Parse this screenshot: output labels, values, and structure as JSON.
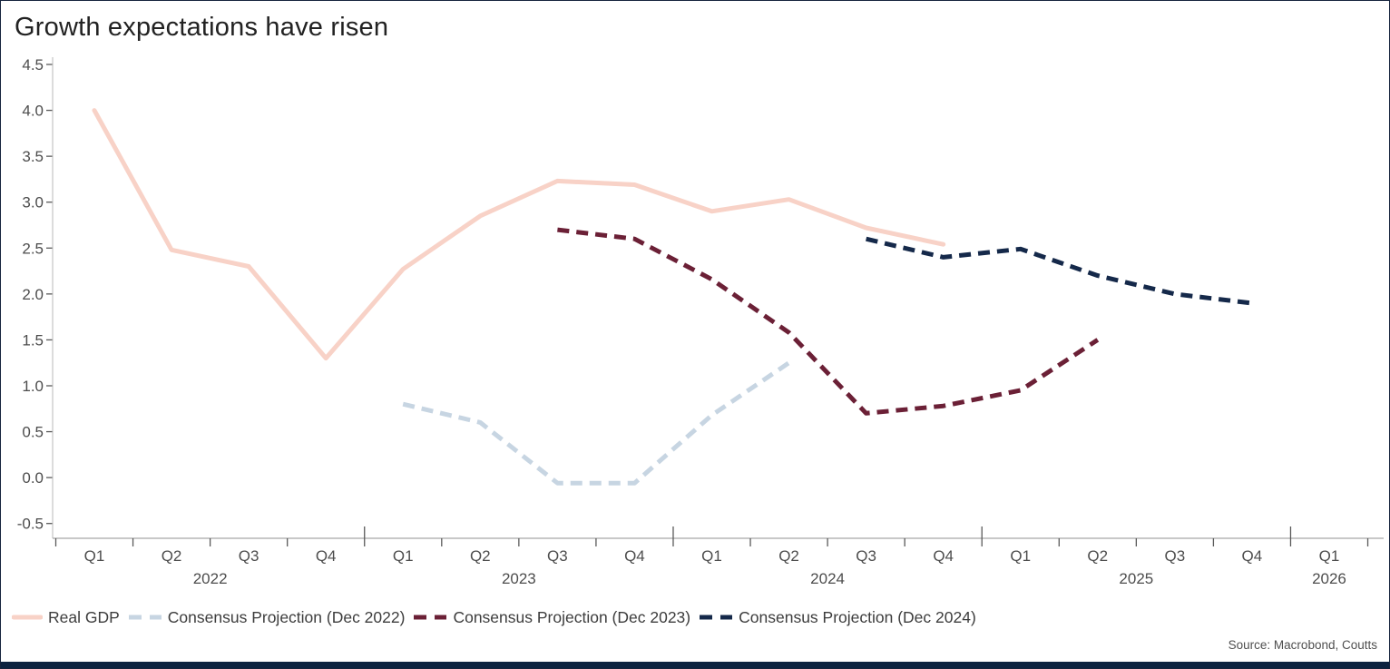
{
  "title": "Growth expectations have risen",
  "source": "Source: Macrobond, Coutts",
  "colors": {
    "real_gdp": "#f8d2c7",
    "proj_dec_2022": "#c7d5e2",
    "proj_dec_2023": "#6b2036",
    "proj_dec_2024": "#15294a",
    "axis_line": "#c4c4c4",
    "x_axis_line": "#a8a8a8",
    "tick": "#5a5a5a",
    "axis_label": "#4d4d4d",
    "bottom_bar": "#0c2340",
    "title_text": "#222222"
  },
  "legend": [
    {
      "label": "Real GDP",
      "color": "#f8d2c7",
      "dashed": false
    },
    {
      "label": "Consensus Projection (Dec 2022)",
      "color": "#c7d5e2",
      "dashed": true
    },
    {
      "label": "Consensus Projection (Dec 2023)",
      "color": "#6b2036",
      "dashed": true
    },
    {
      "label": "Consensus Projection (Dec 2024)",
      "color": "#15294a",
      "dashed": true
    }
  ],
  "y_axis": {
    "tick_labels": [
      "4.5",
      "4.0",
      "3.5",
      "3.0",
      "2.5",
      "2.0",
      "1.5",
      "1.0",
      "0.5",
      "0.0",
      "-0.5"
    ]
  },
  "x_axis": {
    "quarter_labels": [
      "Q1",
      "Q2",
      "Q3",
      "Q4",
      "Q1",
      "Q2",
      "Q3",
      "Q4",
      "Q1",
      "Q2",
      "Q3",
      "Q4",
      "Q1",
      "Q2",
      "Q3",
      "Q4",
      "Q1"
    ],
    "year_groups": [
      {
        "label": "2022",
        "span": 4
      },
      {
        "label": "2023",
        "span": 4
      },
      {
        "label": "2024",
        "span": 4
      },
      {
        "label": "2025",
        "span": 4
      },
      {
        "label": "2026",
        "span": 1
      }
    ]
  },
  "chart_data": {
    "type": "line",
    "title": "Growth expectations have risen",
    "xlabel": "",
    "ylabel": "",
    "ylim": [
      -0.5,
      4.5
    ],
    "y_tick_step": 0.5,
    "grid": false,
    "legend_position": "bottom-left",
    "x_categories": [
      "Q1 2022",
      "Q2 2022",
      "Q3 2022",
      "Q4 2022",
      "Q1 2023",
      "Q2 2023",
      "Q3 2023",
      "Q4 2023",
      "Q1 2024",
      "Q2 2024",
      "Q3 2024",
      "Q4 2024",
      "Q1 2025",
      "Q2 2025",
      "Q3 2025",
      "Q4 2025",
      "Q1 2026"
    ],
    "series": [
      {
        "name": "Real GDP",
        "style": "solid",
        "color": "#f8d2c7",
        "start": 0,
        "values": [
          4.0,
          2.48,
          2.3,
          1.3,
          2.27,
          2.85,
          3.23,
          3.19,
          2.9,
          3.03,
          2.72,
          2.54
        ]
      },
      {
        "name": "Consensus Projection (Dec 2022)",
        "style": "dashed",
        "color": "#c7d5e2",
        "start": 4,
        "values": [
          0.8,
          0.6,
          -0.06,
          -0.06,
          0.68,
          1.25
        ]
      },
      {
        "name": "Consensus Projection (Dec 2023)",
        "style": "dashed",
        "color": "#6b2036",
        "start": 6,
        "values": [
          2.7,
          2.6,
          2.16,
          1.58,
          0.7,
          0.78,
          0.95,
          1.5
        ]
      },
      {
        "name": "Consensus Projection (Dec 2024)",
        "style": "dashed",
        "color": "#15294a",
        "start": 10,
        "values": [
          2.6,
          2.4,
          2.49,
          2.2,
          2.0,
          1.9
        ]
      }
    ]
  }
}
